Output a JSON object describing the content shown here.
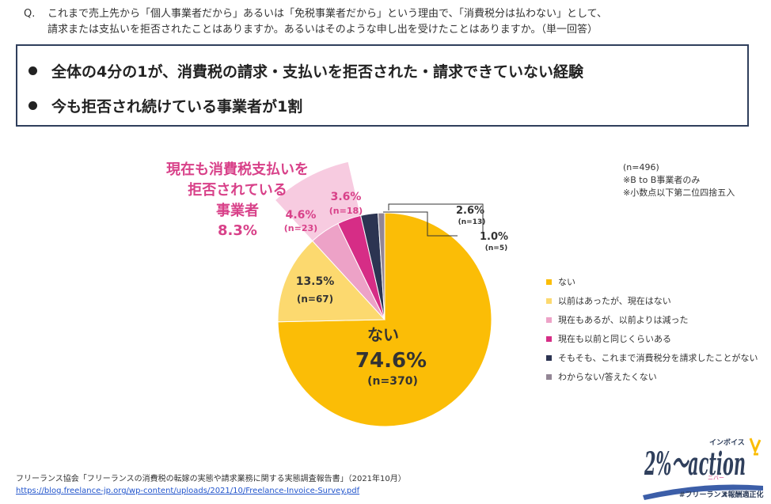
{
  "question": {
    "label": "Q.",
    "line1": "これまで売上先から「個人事業者だから」あるいは「免税事業者だから」という理由で、「消費税分は払わない」として、",
    "line2": "請求または支払いを拒否されたことはありますか。あるいはそのような申し出を受けたことはありますか。（単一回答）"
  },
  "summary": [
    "全体の4分の1が、消費税の請求・支払いを拒否された・請求できていない経験",
    "今も拒否され続けている事業者が1割"
  ],
  "notes": {
    "n": "(n=496)",
    "note1": "※B to B事業者のみ",
    "note2": "※小数点以下第二位四捨五入"
  },
  "colors": {
    "nai": "#fbbd06",
    "izen": "#fcd96f",
    "genzai_hetta": "#eda2c7",
    "genzai_onaji": "#d62d86",
    "somosomo": "#2c3452",
    "wakaranai": "#938695",
    "highlight_wedge": "#f7cbe0",
    "callout_text": "#d84189",
    "frame": "#2f3f5c"
  },
  "chart_data": {
    "type": "pie",
    "title": "",
    "categories": [
      "ない",
      "以前はあったが、現在はない",
      "現在もあるが、以前よりは減った",
      "現在も以前と同じくらいある",
      "そもそも、これまで消費税分を請求したことがない",
      "わからない/答えたくない"
    ],
    "values": [
      74.6,
      13.5,
      4.6,
      3.6,
      2.6,
      1.0
    ],
    "counts": [
      370,
      67,
      23,
      18,
      13,
      5
    ],
    "value_labels": [
      "74.6%",
      "13.5%",
      "4.6%",
      "3.6%",
      "2.6%",
      "1.0%"
    ],
    "count_labels": [
      "(n=370)",
      "(n=67)",
      "(n=23)",
      "(n=18)",
      "(n=13)",
      "(n=5)"
    ],
    "center_label": "ない",
    "legend_position": "right",
    "callout": {
      "line1": "現在も消費税支払いを",
      "line2": "拒否されている",
      "line3": "事業者",
      "value": "8.3%"
    }
  },
  "source": {
    "text": "フリーランス協会「フリーランスの消費税の転嫁の実態や請求業務に関する実態調査報告書」（2021年10月）",
    "url": "https://blog.freelance-jp.org/wp-content/uploads/2021/10/Freelance-Invoice-Survey.pdf"
  },
  "logo": {
    "main": "2%〜action",
    "kana": "インボイス",
    "sub": "ニバー",
    "tag1": "#フリーランス",
    "tag2": "#報酬適正化"
  }
}
